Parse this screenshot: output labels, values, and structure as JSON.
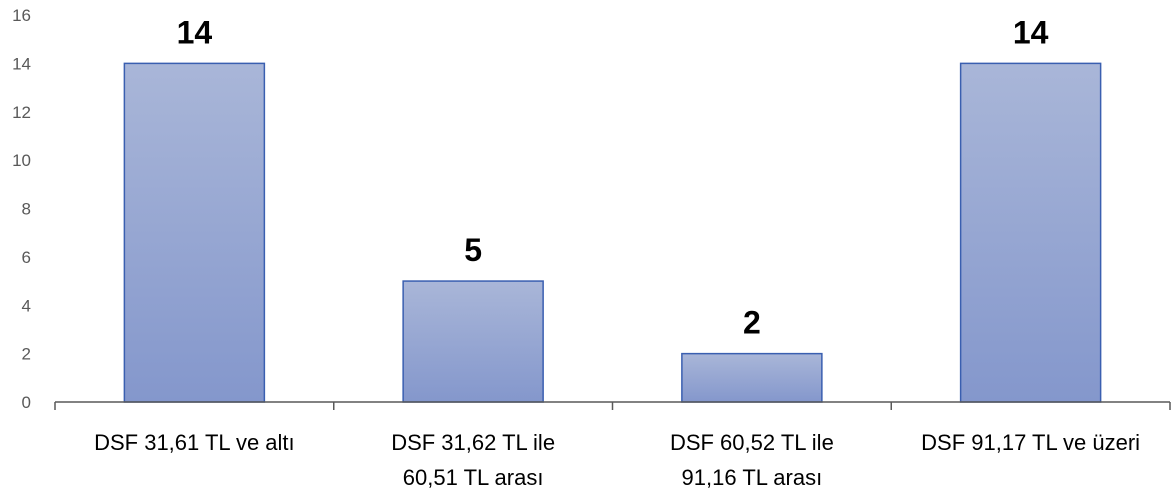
{
  "chart_data": {
    "type": "bar",
    "categories": [
      [
        "DSF 31,61 TL ve altı"
      ],
      [
        "DSF 31,62 TL ile",
        "60,51 TL arası"
      ],
      [
        "DSF 60,52 TL ile",
        "91,16 TL arası"
      ],
      [
        "DSF 91,17 TL ve üzeri"
      ]
    ],
    "values": [
      14,
      5,
      2,
      14
    ],
    "data_labels": [
      "14",
      "5",
      "2",
      "14"
    ],
    "title": "",
    "xlabel": "",
    "ylabel": "",
    "ylim": [
      0,
      16
    ],
    "yticks": [
      "0",
      "2",
      "4",
      "6",
      "8",
      "10",
      "12",
      "14",
      "16"
    ],
    "grid": false,
    "legend": "none",
    "colors": {
      "bar_top": "#a9b6d8",
      "bar_bottom": "#8497cc",
      "bar_border": "#3a5fb0",
      "axis": "#595959"
    }
  }
}
